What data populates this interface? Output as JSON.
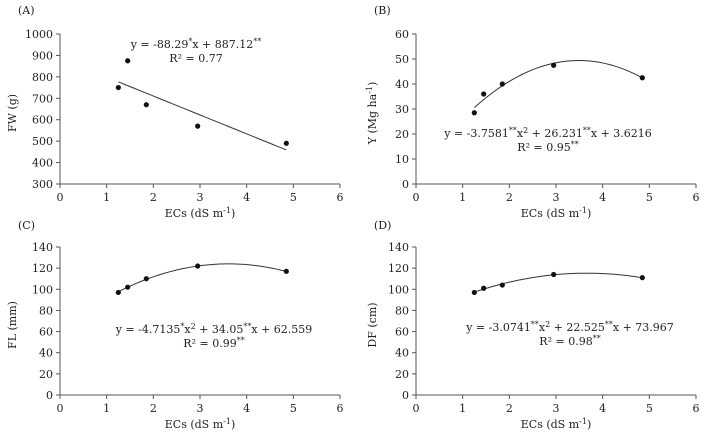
{
  "chart_data": [
    {
      "id": "A",
      "type": "scatter",
      "panel_label": "(A)",
      "ylabel": "FW (g)",
      "xlabel": "ECs (dS m-1)",
      "xlim": [
        0,
        6
      ],
      "ylim": [
        300,
        1000
      ],
      "xticks": [
        0,
        1,
        2,
        3,
        4,
        5,
        6
      ],
      "yticks": [
        300,
        400,
        500,
        600,
        700,
        800,
        900,
        1000
      ],
      "x": [
        1.25,
        1.45,
        1.85,
        2.95,
        4.85
      ],
      "y": [
        750,
        875,
        670,
        570,
        490
      ],
      "fit": {
        "kind": "linear",
        "coef": [
          887.12,
          -88.29
        ],
        "xrange": [
          1.25,
          4.85
        ]
      },
      "equation": "y = -88.29*x + 887.12**",
      "r2": "R2 = 0.77"
    },
    {
      "id": "B",
      "type": "scatter",
      "panel_label": "(B)",
      "ylabel": "Y (Mg ha-1)",
      "xlabel": "ECs (dS m-1)",
      "xlim": [
        0,
        6
      ],
      "ylim": [
        0,
        60
      ],
      "xticks": [
        0,
        1,
        2,
        3,
        4,
        5,
        6
      ],
      "yticks": [
        0,
        10,
        20,
        30,
        40,
        50,
        60
      ],
      "x": [
        1.25,
        1.45,
        1.85,
        2.95,
        4.85
      ],
      "y": [
        28.5,
        36,
        40,
        47.5,
        42.5
      ],
      "fit": {
        "kind": "quadratic",
        "coef": [
          3.6216,
          26.231,
          -3.7581
        ],
        "xrange": [
          1.25,
          4.85
        ]
      },
      "equation": "y = -3.7581**x2 + 26.231**x + 3.6216",
      "r2": "R2 = 0.95**"
    },
    {
      "id": "C",
      "type": "scatter",
      "panel_label": "(C)",
      "ylabel": "FL (mm)",
      "xlabel": "ECs (dS m-1)",
      "xlim": [
        0,
        6
      ],
      "ylim": [
        0,
        140
      ],
      "xticks": [
        0,
        1,
        2,
        3,
        4,
        5,
        6
      ],
      "yticks": [
        0,
        20,
        40,
        60,
        80,
        100,
        120,
        140
      ],
      "x": [
        1.25,
        1.45,
        1.85,
        2.95,
        4.85
      ],
      "y": [
        97,
        102,
        110,
        122,
        117
      ],
      "fit": {
        "kind": "quadratic",
        "coef": [
          62.559,
          34.05,
          -4.7135
        ],
        "xrange": [
          1.25,
          4.85
        ]
      },
      "equation": "y = -4.7135*x2 + 34.05**x + 62.559",
      "r2": "R2 = 0.99**"
    },
    {
      "id": "D",
      "type": "scatter",
      "panel_label": "(D)",
      "ylabel": "DF (cm)",
      "xlabel": "ECs (dS m-1)",
      "xlim": [
        0,
        6
      ],
      "ylim": [
        0,
        140
      ],
      "xticks": [
        0,
        1,
        2,
        3,
        4,
        5,
        6
      ],
      "yticks": [
        0,
        20,
        40,
        60,
        80,
        100,
        120,
        140
      ],
      "x": [
        1.25,
        1.45,
        1.85,
        2.95,
        4.85
      ],
      "y": [
        97,
        101,
        104,
        114,
        111
      ],
      "fit": {
        "kind": "quadratic",
        "coef": [
          73.967,
          22.525,
          -3.0741
        ],
        "xrange": [
          1.25,
          4.85
        ]
      },
      "equation": "y = -3.0741**x2 + 22.525**x + 73.967",
      "r2": "R2 = 0.98**"
    }
  ]
}
